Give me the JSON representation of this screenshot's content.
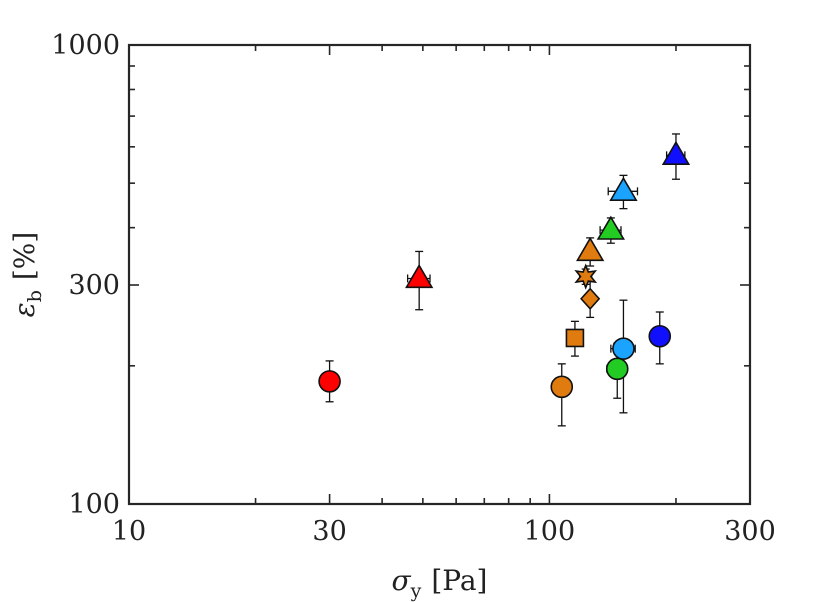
{
  "chart_data": {
    "type": "scatter",
    "title": "",
    "xscale": "log",
    "yscale": "log",
    "xlim": [
      10,
      300
    ],
    "ylim": [
      100,
      1000
    ],
    "xticks": [
      10,
      30,
      100,
      300
    ],
    "yticks": [
      100,
      300,
      1000
    ],
    "xtick_labels": [
      "10",
      "30",
      "100",
      "300"
    ],
    "ytick_labels": [
      "100",
      "300",
      "1000"
    ],
    "xlabel": {
      "symbol": "σ",
      "sub": "y",
      "unit": "[Pa]"
    },
    "ylabel": {
      "symbol": "ε",
      "sub": "b",
      "unit": "[%]"
    },
    "grid": false,
    "points": [
      {
        "x": 30,
        "y": 185,
        "xerr": [
          1.0,
          1.0
        ],
        "yerr": [
          18,
          20
        ],
        "marker": "circle",
        "color": "#ff0000"
      },
      {
        "x": 49,
        "y": 310,
        "xerr": [
          3,
          3
        ],
        "yerr": [
          45,
          45
        ],
        "marker": "triangle",
        "color": "#ff0000"
      },
      {
        "x": 107,
        "y": 180,
        "xerr": [
          1.5,
          1.5
        ],
        "yerr": [
          32,
          22
        ],
        "marker": "circle",
        "color": "#e07b10"
      },
      {
        "x": 115,
        "y": 230,
        "xerr": [
          2.5,
          2.5
        ],
        "yerr": [
          20,
          20
        ],
        "marker": "square",
        "color": "#e07b10"
      },
      {
        "x": 122,
        "y": 313,
        "xerr": [
          4,
          4
        ],
        "yerr": [
          12,
          12
        ],
        "marker": "star",
        "color": "#e07b10"
      },
      {
        "x": 125,
        "y": 280,
        "xerr": [
          3,
          3
        ],
        "yerr": [
          25,
          25
        ],
        "marker": "diamond",
        "color": "#e07b10"
      },
      {
        "x": 125,
        "y": 355,
        "xerr": [
          3,
          3
        ],
        "yerr": [
          25,
          25
        ],
        "marker": "triangle",
        "color": "#e07b10"
      },
      {
        "x": 145,
        "y": 197,
        "xerr": [
          8,
          8
        ],
        "yerr": [
          27,
          27
        ],
        "marker": "circle",
        "color": "#22cc22"
      },
      {
        "x": 150,
        "y": 218,
        "xerr": [
          10,
          10
        ],
        "yerr": [
          60,
          60
        ],
        "marker": "circle",
        "color": "#1aa3ff"
      },
      {
        "x": 140,
        "y": 395,
        "xerr": [
          8,
          8
        ],
        "yerr": [
          25,
          25
        ],
        "marker": "triangle",
        "color": "#22cc22"
      },
      {
        "x": 150,
        "y": 480,
        "xerr": [
          12,
          12
        ],
        "yerr": [
          40,
          40
        ],
        "marker": "triangle",
        "color": "#1aa3ff"
      },
      {
        "x": 183,
        "y": 232,
        "xerr": [
          8,
          8
        ],
        "yerr": [
          30,
          30
        ],
        "marker": "circle",
        "color": "#1010ff"
      },
      {
        "x": 200,
        "y": 575,
        "xerr": [
          10,
          10
        ],
        "yerr": [
          65,
          65
        ],
        "marker": "triangle",
        "color": "#1010ff"
      }
    ]
  }
}
